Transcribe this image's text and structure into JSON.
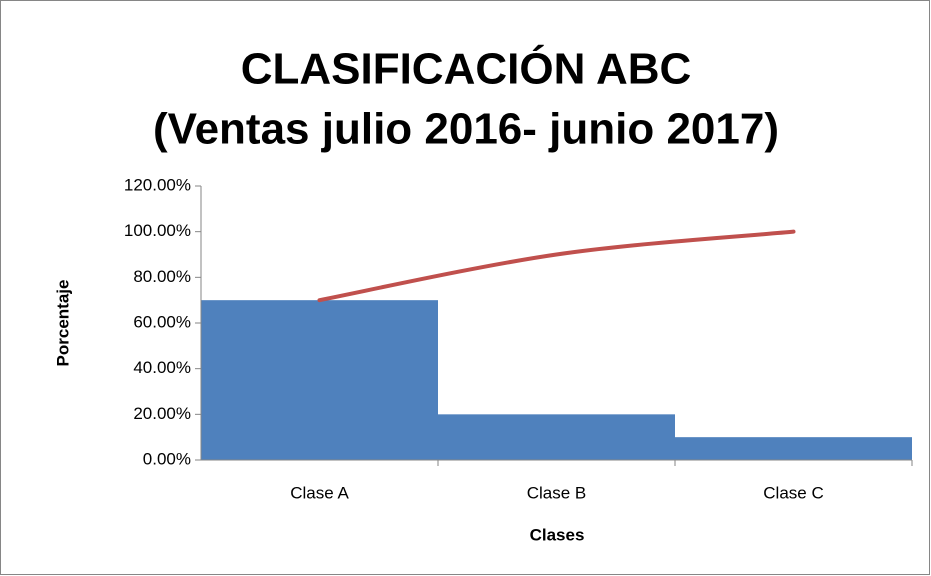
{
  "chart_data": {
    "type": "pareto",
    "title": "CLASIFICACIÓN ABC",
    "subtitle": "(Ventas julio 2016- junio 2017)",
    "y_label": "Porcentaje",
    "x_label": "Clases",
    "categories": [
      "Clase A",
      "Clase B",
      "Clase C"
    ],
    "series": [
      {
        "type": "bar",
        "color": "#4f81bd",
        "values": [
          70,
          20,
          10
        ]
      },
      {
        "type": "line",
        "color": "#c0504d",
        "values": [
          70,
          90,
          100
        ]
      }
    ],
    "ylim": [
      0,
      120
    ],
    "yticks": [
      {
        "value": 0,
        "label": "0.00%"
      },
      {
        "value": 20,
        "label": "20.00%"
      },
      {
        "value": 40,
        "label": "40.00%"
      },
      {
        "value": 60,
        "label": "60.00%"
      },
      {
        "value": 80,
        "label": "80.00%"
      },
      {
        "value": 100,
        "label": "100.00%"
      },
      {
        "value": 120,
        "label": "120.00%"
      }
    ]
  }
}
